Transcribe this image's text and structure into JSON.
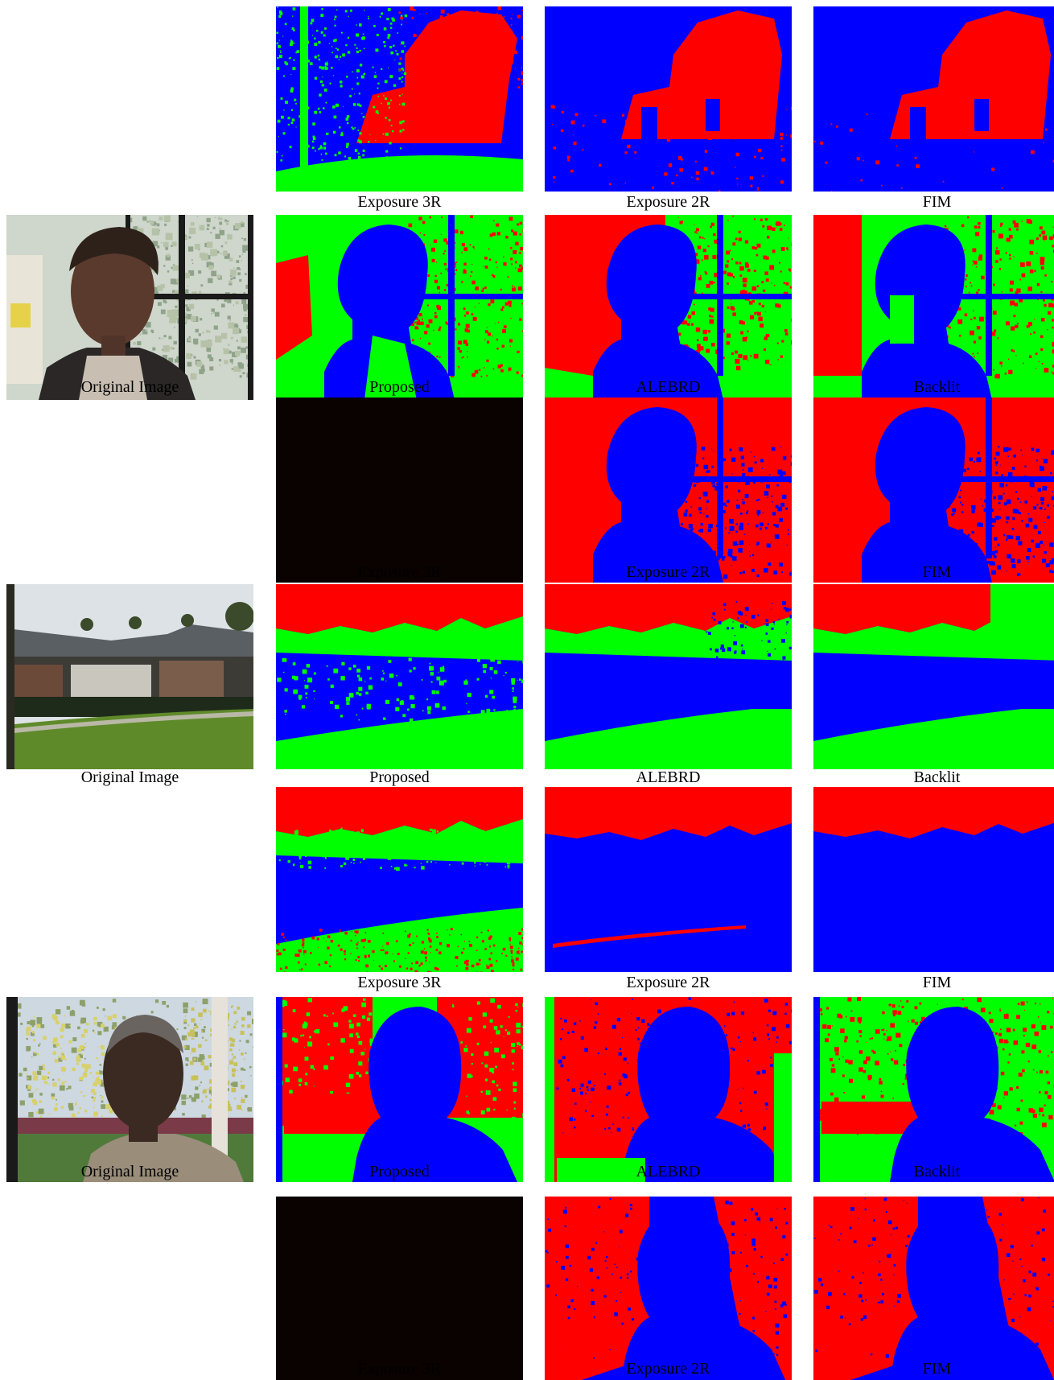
{
  "colors": {
    "red": "#ff0000",
    "green": "#00ff00",
    "blue": "#0000ff",
    "dark": "#0a0200"
  },
  "rows": [
    {
      "original": null,
      "panels": [
        {
          "caption": "Exposure 3R",
          "scene": "building",
          "kind": "exp3r-building"
        },
        {
          "caption": "Exposure 2R",
          "scene": "building",
          "kind": "exp2r-building"
        },
        {
          "caption": "FIM",
          "scene": "building",
          "kind": "fim-building"
        }
      ]
    },
    {
      "original": {
        "caption": "Original Image",
        "scene": "man-window"
      },
      "panels": [
        {
          "caption": "Proposed",
          "scene": "man-window",
          "kind": "proposed-man"
        },
        {
          "caption": "ALEBRD",
          "scene": "man-window",
          "kind": "alebrd-man"
        },
        {
          "caption": "Backlit",
          "scene": "man-window",
          "kind": "backlit-man"
        }
      ]
    },
    {
      "original": null,
      "panels": [
        {
          "caption": "Exposure 3R",
          "scene": "man-window",
          "kind": "dark"
        },
        {
          "caption": "Exposure 2R",
          "scene": "man-window",
          "kind": "exp2r-man"
        },
        {
          "caption": "FIM",
          "scene": "man-window",
          "kind": "fim-man"
        }
      ]
    },
    {
      "original": {
        "caption": "Original Image",
        "scene": "house-lawn"
      },
      "panels": [
        {
          "caption": "Proposed",
          "scene": "house-lawn",
          "kind": "proposed-house"
        },
        {
          "caption": "ALEBRD",
          "scene": "house-lawn",
          "kind": "alebrd-house"
        },
        {
          "caption": "Backlit",
          "scene": "house-lawn",
          "kind": "backlit-house"
        }
      ]
    },
    {
      "original": null,
      "panels": [
        {
          "caption": "Exposure 3R",
          "scene": "house-lawn",
          "kind": "exp3r-house"
        },
        {
          "caption": "Exposure 2R",
          "scene": "house-lawn",
          "kind": "exp2r-house"
        },
        {
          "caption": "FIM",
          "scene": "house-lawn",
          "kind": "fim-house"
        }
      ]
    },
    {
      "original": {
        "caption": "Original Image",
        "scene": "man-porch"
      },
      "panels": [
        {
          "caption": "Proposed",
          "scene": "man-porch",
          "kind": "proposed-porch"
        },
        {
          "caption": "ALEBRD",
          "scene": "man-porch",
          "kind": "alebrd-porch"
        },
        {
          "caption": "Backlit",
          "scene": "man-porch",
          "kind": "backlit-porch"
        }
      ]
    },
    {
      "original": null,
      "panels": [
        {
          "caption": "Exposure 3R",
          "scene": "man-porch",
          "kind": "dark"
        },
        {
          "caption": "Exposure 2R",
          "scene": "man-porch",
          "kind": "exp2r-porch"
        },
        {
          "caption": "FIM",
          "scene": "man-porch",
          "kind": "fim-porch"
        }
      ]
    }
  ]
}
